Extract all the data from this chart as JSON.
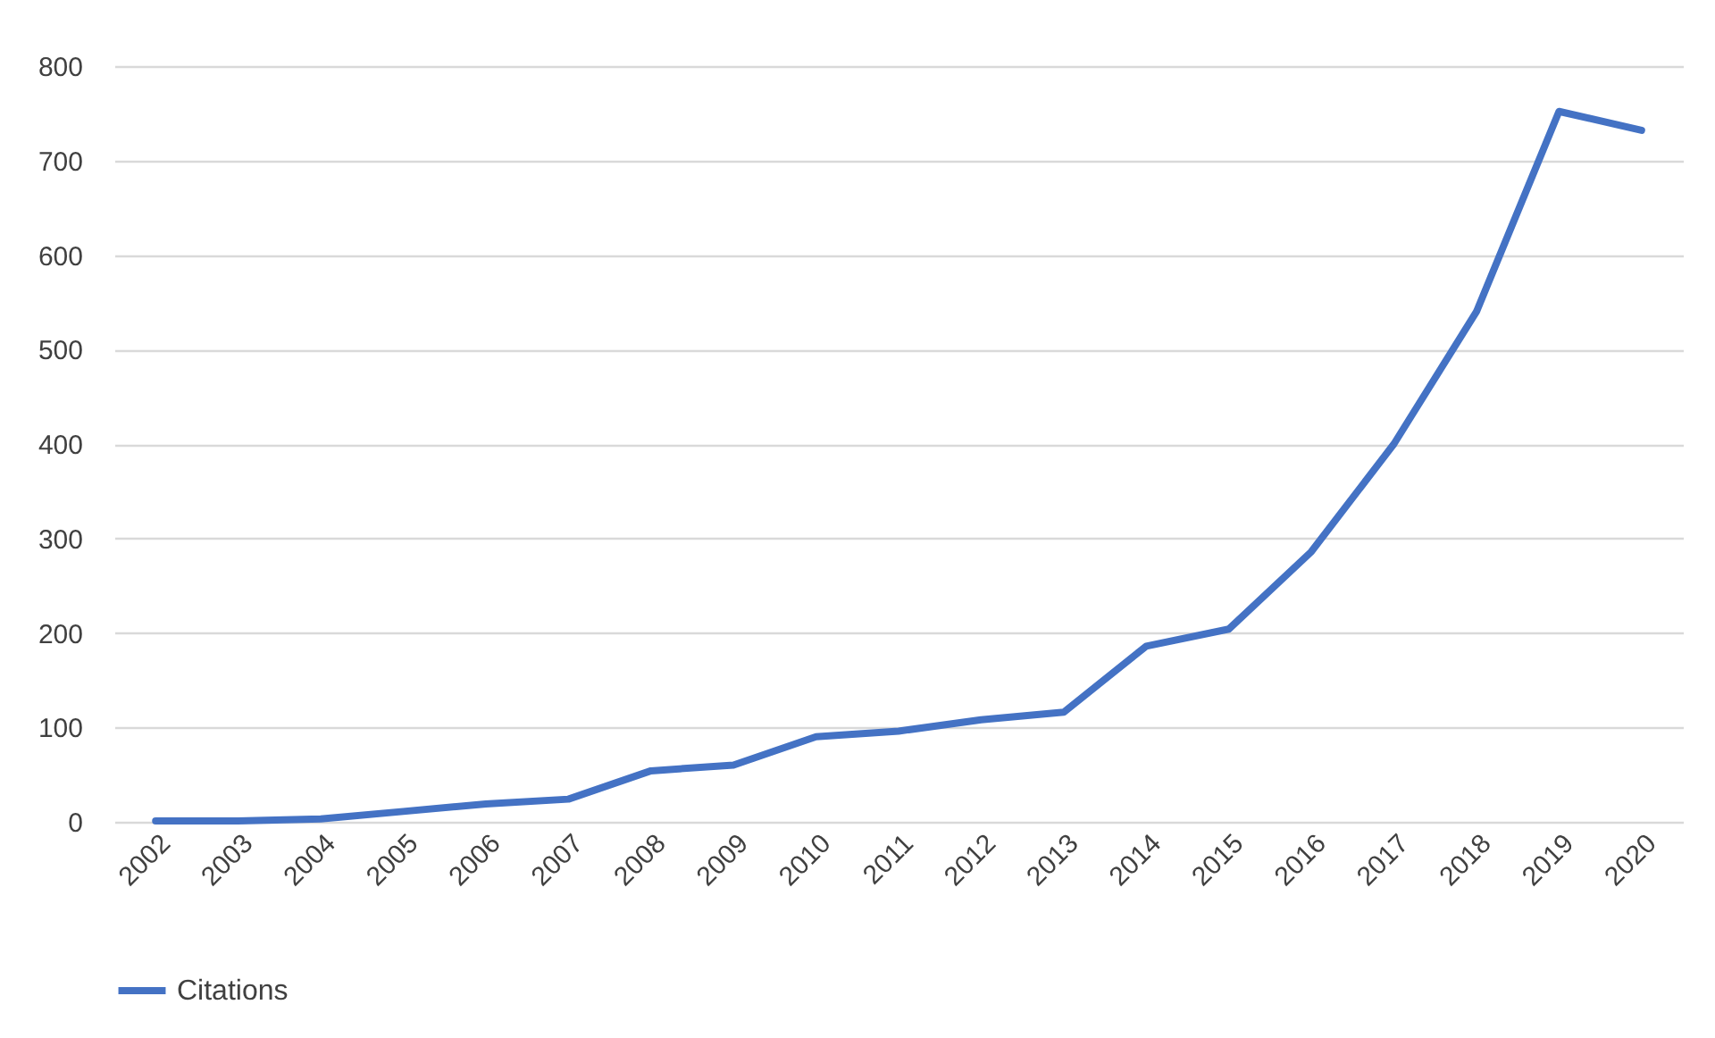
{
  "chart_data": {
    "type": "line",
    "categories": [
      "2002",
      "2003",
      "2004",
      "2005",
      "2006",
      "2007",
      "2008",
      "2009",
      "2010",
      "2011",
      "2012",
      "2013",
      "2014",
      "2015",
      "2016",
      "2017",
      "2018",
      "2019",
      "2020"
    ],
    "series": [
      {
        "name": "Citations",
        "color": "#4472c4",
        "values": [
          1,
          1,
          3,
          11,
          19,
          24,
          54,
          60,
          90,
          96,
          108,
          116,
          186,
          204,
          286,
          400,
          540,
          752,
          732
        ]
      }
    ],
    "ylim": [
      0,
      800
    ],
    "yticks": [
      0,
      100,
      200,
      300,
      400,
      500,
      600,
      700,
      800
    ],
    "grid": "y",
    "legend": "bottom",
    "marker": "none",
    "line_style": "solid"
  }
}
